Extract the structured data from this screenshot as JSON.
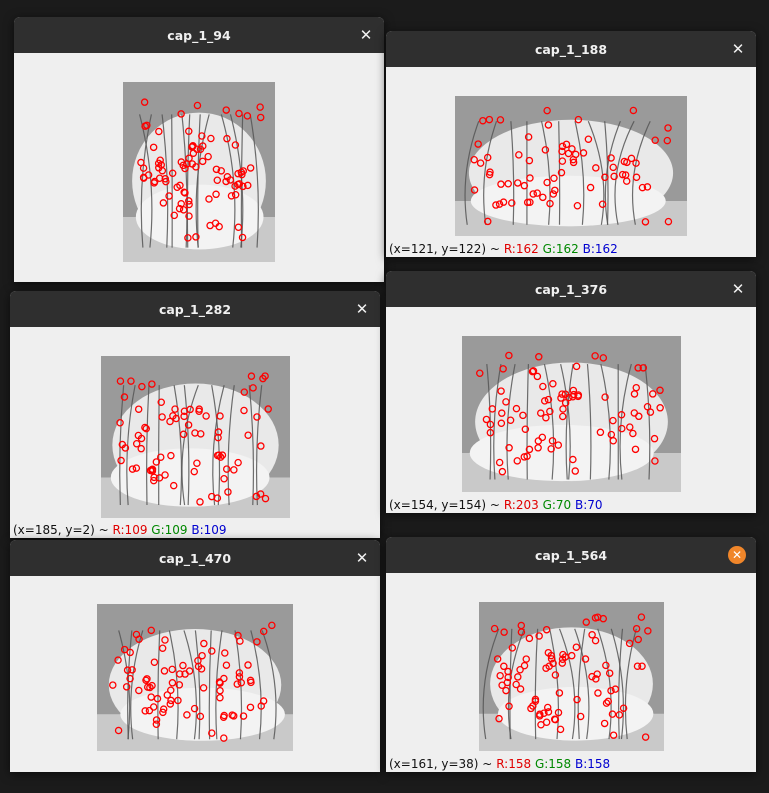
{
  "windows": [
    {
      "id": "w1",
      "title": "cap_1_94",
      "close_hover": false,
      "status": null
    },
    {
      "id": "w2",
      "title": "cap_1_188",
      "close_hover": false,
      "status": {
        "coords": "(x=121, y=122) ~",
        "r": "R:162",
        "g": "G:162",
        "b": "B:162"
      }
    },
    {
      "id": "w3",
      "title": "cap_1_282",
      "close_hover": false,
      "status": {
        "coords": "(x=185, y=2) ~",
        "r": "R:109",
        "g": "G:109",
        "b": "B:109"
      }
    },
    {
      "id": "w4",
      "title": "cap_1_376",
      "close_hover": false,
      "status": {
        "coords": "(x=154, y=154) ~",
        "r": "R:203",
        "g": "G:70",
        "b": "B:70"
      }
    },
    {
      "id": "w5",
      "title": "cap_1_470",
      "close_hover": false,
      "status": null
    },
    {
      "id": "w6",
      "title": "cap_1_564",
      "close_hover": true,
      "status": {
        "coords": "(x=161, y=38) ~",
        "r": "R:158",
        "g": "G:158",
        "b": "B:158"
      }
    }
  ],
  "icons": {
    "close": "close-icon"
  },
  "colors": {
    "titlebar": "#2f2f2f",
    "client": "#efefef",
    "keypoint": "#ff0000",
    "close_hover": "#f0862a"
  }
}
